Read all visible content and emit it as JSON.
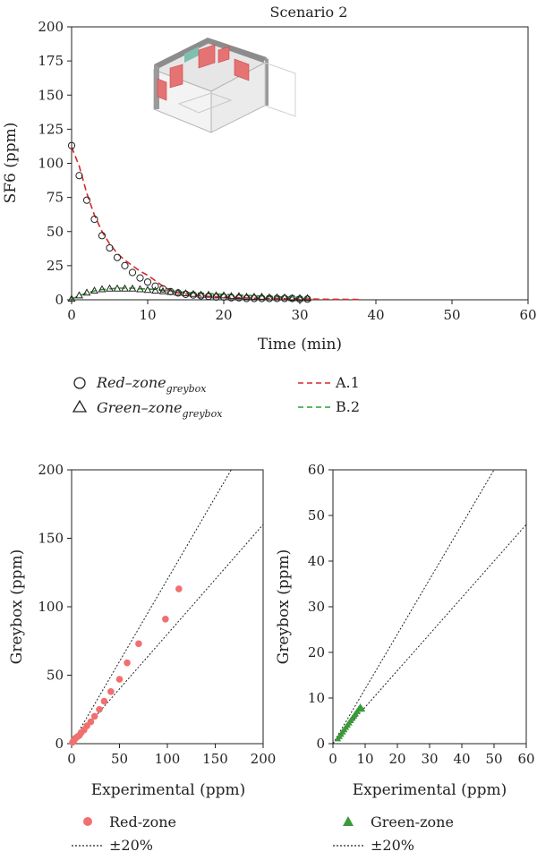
{
  "chart_data": [
    {
      "type": "line",
      "title": "Scenario 2",
      "xlabel": "Time (min)",
      "ylabel": "SF6 (ppm)",
      "xlim": [
        0,
        60
      ],
      "ylim": [
        0,
        200
      ],
      "xticks": [
        0,
        10,
        20,
        30,
        40,
        50,
        60
      ],
      "yticks": [
        0,
        25,
        50,
        75,
        100,
        125,
        150,
        175,
        200
      ],
      "inset": "building-isometric-illustration",
      "series": [
        {
          "name": "Red–zone",
          "name_sub": "greybox",
          "marker": "circle",
          "color": "#222222",
          "x": [
            0,
            1,
            2,
            3,
            4,
            5,
            6,
            7,
            8,
            9,
            10,
            11,
            12,
            13,
            14,
            15,
            16,
            17,
            18,
            19,
            20,
            21,
            22,
            23,
            24,
            25,
            26,
            27,
            28,
            29,
            30,
            31
          ],
          "y": [
            113,
            91,
            73,
            59,
            47,
            38,
            31,
            25,
            20,
            16,
            13,
            10,
            8,
            6,
            5,
            4,
            3.5,
            3,
            2.5,
            2,
            2,
            1.5,
            1.5,
            1,
            1,
            1,
            1,
            1,
            1,
            1,
            0.5,
            0.5
          ]
        },
        {
          "name": "Green–zone",
          "name_sub": "greybox",
          "marker": "triangle",
          "color": "#222222",
          "x": [
            0,
            1,
            2,
            3,
            4,
            5,
            6,
            7,
            8,
            9,
            10,
            11,
            12,
            13,
            14,
            15,
            16,
            17,
            18,
            19,
            20,
            21,
            22,
            23,
            24,
            25,
            26,
            27,
            28,
            29,
            30,
            31
          ],
          "y": [
            0.5,
            3,
            5,
            6.5,
            7.5,
            8,
            8,
            8,
            8,
            7.5,
            7,
            6.5,
            6,
            5.5,
            5,
            4.5,
            4,
            3.5,
            3.5,
            3,
            3,
            2.5,
            2.5,
            2,
            2,
            2,
            1.5,
            1.5,
            1.5,
            1,
            1,
            1
          ]
        },
        {
          "name": "A.1",
          "style": "dashed",
          "color": "#d62728",
          "x": [
            0,
            1,
            2,
            3,
            4,
            5,
            6,
            7,
            8,
            9,
            10,
            11,
            12,
            13,
            14,
            16,
            18,
            20,
            22,
            24,
            26,
            28,
            30,
            32,
            34,
            36,
            38
          ],
          "y": [
            112,
            98,
            78,
            62,
            50,
            41,
            34,
            29,
            25,
            21,
            18,
            14,
            10,
            7,
            5,
            3.5,
            2.5,
            2,
            1.5,
            1.2,
            1,
            0.8,
            0.6,
            0.5,
            0.4,
            0.3,
            0.2
          ]
        },
        {
          "name": "B.2",
          "style": "dashed",
          "color": "#2ca02c",
          "x": [
            0,
            1,
            2,
            3,
            4,
            5,
            6,
            7,
            8,
            9,
            10,
            11,
            12,
            13,
            14,
            16,
            18,
            20,
            22,
            24,
            26,
            28,
            30,
            31
          ],
          "y": [
            0.5,
            3,
            5,
            6.5,
            7.5,
            8,
            8.5,
            8.5,
            8.5,
            8,
            8,
            7.5,
            7,
            6.5,
            6,
            5,
            4.5,
            4,
            3.5,
            3,
            2.5,
            2,
            2,
            1.5
          ]
        }
      ]
    },
    {
      "type": "scatter",
      "xlabel": "Experimental (ppm)",
      "ylabel": "Greybox (ppm)",
      "xlim": [
        0,
        200
      ],
      "ylim": [
        0,
        200
      ],
      "xticks": [
        0,
        50,
        100,
        150,
        200
      ],
      "yticks": [
        0,
        50,
        100,
        150,
        200
      ],
      "series": [
        {
          "name": "Red-zone",
          "marker": "circle",
          "color": "#f07070",
          "x": [
            112,
            98,
            70,
            58,
            50,
            41,
            34,
            29,
            24,
            20,
            16,
            13,
            10,
            8,
            6,
            4,
            3,
            2,
            1
          ],
          "y": [
            113,
            91,
            73,
            59,
            47,
            38,
            31,
            25,
            20,
            16,
            13,
            10,
            8,
            6,
            5,
            4,
            3,
            2,
            1
          ]
        },
        {
          "name": "±20%",
          "style": "dotted",
          "color": "#222222",
          "x": [
            0,
            200
          ],
          "upper_slope": 1.2,
          "lower_slope": 0.8
        }
      ]
    },
    {
      "type": "scatter",
      "xlabel": "Experimental (ppm)",
      "ylabel": "Greybox (ppm)",
      "xlim": [
        0,
        60
      ],
      "ylim": [
        0,
        60
      ],
      "xticks": [
        0,
        10,
        20,
        30,
        40,
        50,
        60
      ],
      "yticks": [
        0,
        10,
        20,
        30,
        40,
        50,
        60
      ],
      "series": [
        {
          "name": "Green-zone",
          "marker": "triangle",
          "color": "#3a9a3a",
          "x": [
            8.5,
            8,
            9,
            7.5,
            7,
            6.5,
            6,
            5.5,
            5,
            4.5,
            4,
            3.5,
            3,
            2.5,
            2,
            1.5
          ],
          "y": [
            8,
            7.5,
            7.5,
            7,
            6.5,
            6,
            5.5,
            5,
            4.5,
            4,
            3.5,
            3,
            2.5,
            2,
            1.5,
            1
          ]
        },
        {
          "name": "±20%",
          "style": "dotted",
          "color": "#222222",
          "x": [
            0,
            60
          ],
          "upper_slope": 1.2,
          "lower_slope": 0.8
        }
      ]
    }
  ]
}
